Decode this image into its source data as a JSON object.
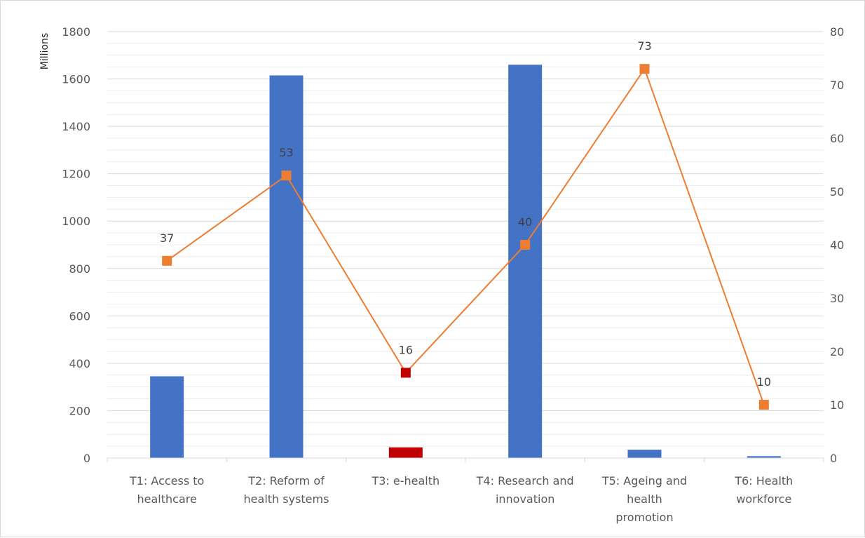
{
  "chart_data": {
    "type": "bar",
    "title": "",
    "categories": [
      [
        "T1: Access to",
        "healthcare"
      ],
      [
        "T2: Reform of",
        "health systems"
      ],
      [
        "T3: e-health"
      ],
      [
        "T4: Research and",
        "innovation"
      ],
      [
        "T5: Ageing and",
        "health",
        "promotion"
      ],
      [
        "T6: Health",
        "workforce"
      ]
    ],
    "ylabel": "Millions",
    "ylim": [
      0,
      1800
    ],
    "yticks": [
      "0",
      "200",
      "400",
      "600",
      "800",
      "1000",
      "1200",
      "1400",
      "1600",
      "1800"
    ],
    "y2lim": [
      0,
      80
    ],
    "y2ticks": [
      "0",
      "10",
      "20",
      "30",
      "40",
      "50",
      "60",
      "70",
      "80"
    ],
    "series": [
      {
        "type": "bar",
        "axis": "left",
        "values": [
          345,
          1615,
          45,
          1660,
          35,
          8
        ],
        "colors": [
          "#4472c4",
          "#4472c4",
          "#c00000",
          "#4472c4",
          "#4472c4",
          "#4472c4"
        ]
      },
      {
        "type": "line",
        "axis": "right",
        "values": [
          37,
          53,
          16,
          40,
          73,
          10
        ],
        "data_labels": [
          "37",
          "53",
          "16",
          "40",
          "73",
          "10"
        ],
        "line_color": "#ed7d31",
        "marker_colors": [
          "#ed7d31",
          "#ed7d31",
          "#c00000",
          "#ed7d31",
          "#ed7d31",
          "#ed7d31"
        ]
      }
    ],
    "grid": true,
    "legend": "none"
  }
}
